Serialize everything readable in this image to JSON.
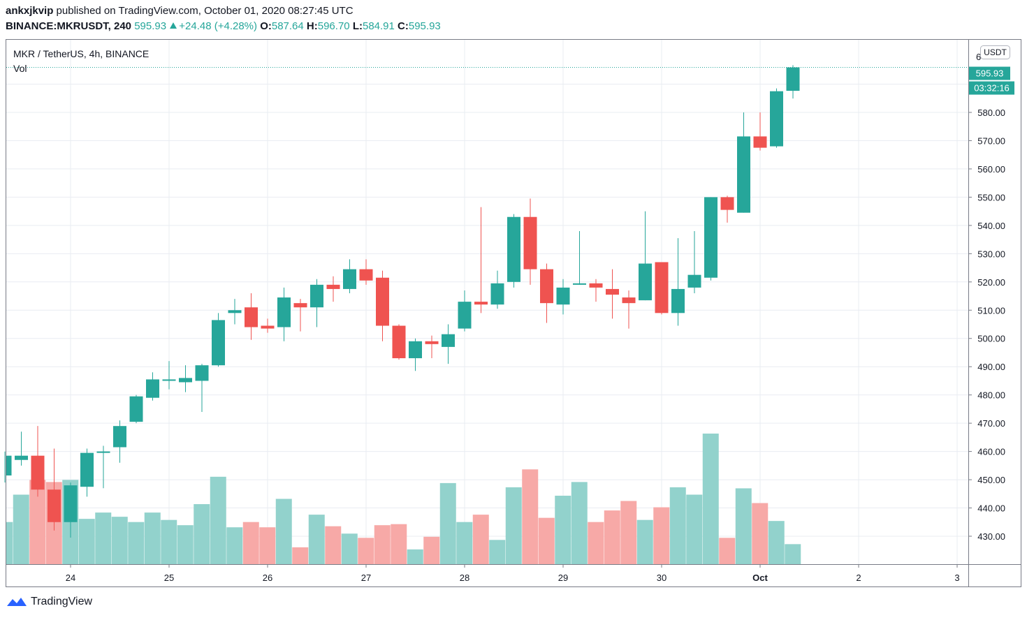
{
  "header": {
    "author": "ankxjkvip",
    "published_text": "published on TradingView.com, October 01, 2020 08:27:45 UTC",
    "symbol": "BINANCE:MKRUSDT, 240",
    "last": "595.93",
    "change": "+24.48 (+4.28%)",
    "o_label": "O:",
    "o_value": "587.64",
    "h_label": "H:",
    "h_value": "596.70",
    "l_label": "L:",
    "l_value": "584.91",
    "c_label": "C:",
    "c_value": "595.93"
  },
  "legend": {
    "series_title": "MKR / TetherUS, 4h, BINANCE",
    "volume_label": "Vol"
  },
  "price_axis": {
    "currency": "USDT",
    "last_price_tag": "595.93",
    "countdown_tag": "03:32:16",
    "top_partial_label": "6"
  },
  "footer": {
    "brand": "TradingView"
  },
  "colors": {
    "up": "#26a69a",
    "down": "#ef5350",
    "up_volume": "#92d2cc",
    "down_volume": "#f7a9a7",
    "grid": "#e9ecf2",
    "axis_text": "#131722"
  },
  "chart_data": {
    "type": "candlestick",
    "ylim": [
      420,
      600
    ],
    "y_ticks": [
      430,
      440,
      450,
      460,
      470,
      480,
      490,
      500,
      510,
      520,
      530,
      540,
      550,
      560,
      570,
      580
    ],
    "x_tick_labels": [
      {
        "label": "24",
        "bar": 4
      },
      {
        "label": "25",
        "bar": 10
      },
      {
        "label": "26",
        "bar": 16
      },
      {
        "label": "27",
        "bar": 22
      },
      {
        "label": "28",
        "bar": 28
      },
      {
        "label": "29",
        "bar": 34
      },
      {
        "label": "30",
        "bar": 40
      },
      {
        "label": "Oct",
        "bar": 46
      },
      {
        "label": "2",
        "bar": 52
      },
      {
        "label": "3",
        "bar": 58
      }
    ],
    "candles": [
      {
        "o": 451.5,
        "h": 460.0,
        "l": 449.0,
        "c": 458.5
      },
      {
        "o": 457.0,
        "h": 467.0,
        "l": 455.0,
        "c": 458.5
      },
      {
        "o": 458.5,
        "h": 469.0,
        "l": 444.0,
        "c": 446.5
      },
      {
        "o": 446.5,
        "h": 461.0,
        "l": 432.0,
        "c": 435.0
      },
      {
        "o": 435.0,
        "h": 449.0,
        "l": 429.5,
        "c": 448.0
      },
      {
        "o": 447.5,
        "h": 461.0,
        "l": 444.0,
        "c": 459.5
      },
      {
        "o": 459.5,
        "h": 462.0,
        "l": 447.0,
        "c": 460.0
      },
      {
        "o": 461.5,
        "h": 471.0,
        "l": 456.0,
        "c": 469.0
      },
      {
        "o": 470.5,
        "h": 480.0,
        "l": 470.0,
        "c": 479.5
      },
      {
        "o": 479.0,
        "h": 488.0,
        "l": 478.0,
        "c": 485.5
      },
      {
        "o": 485.0,
        "h": 492.0,
        "l": 482.0,
        "c": 485.5
      },
      {
        "o": 484.5,
        "h": 490.5,
        "l": 481.0,
        "c": 486.0
      },
      {
        "o": 485.0,
        "h": 491.0,
        "l": 474.0,
        "c": 490.5
      },
      {
        "o": 490.5,
        "h": 509.0,
        "l": 490.0,
        "c": 506.5
      },
      {
        "o": 509.0,
        "h": 514.0,
        "l": 505.0,
        "c": 510.0
      },
      {
        "o": 511.0,
        "h": 516.0,
        "l": 499.5,
        "c": 504.0
      },
      {
        "o": 504.5,
        "h": 507.0,
        "l": 502.0,
        "c": 503.5
      },
      {
        "o": 504.0,
        "h": 518.0,
        "l": 499.0,
        "c": 514.5
      },
      {
        "o": 512.5,
        "h": 514.0,
        "l": 502.5,
        "c": 511.0
      },
      {
        "o": 511.0,
        "h": 521.0,
        "l": 504.0,
        "c": 519.0
      },
      {
        "o": 519.0,
        "h": 522.0,
        "l": 513.0,
        "c": 517.5
      },
      {
        "o": 517.5,
        "h": 528.0,
        "l": 516.0,
        "c": 524.5
      },
      {
        "o": 524.5,
        "h": 528.0,
        "l": 519.0,
        "c": 520.5
      },
      {
        "o": 521.5,
        "h": 524.0,
        "l": 499.0,
        "c": 504.5
      },
      {
        "o": 504.5,
        "h": 505.0,
        "l": 492.5,
        "c": 493.0
      },
      {
        "o": 493.0,
        "h": 500.0,
        "l": 488.5,
        "c": 499.0
      },
      {
        "o": 499.0,
        "h": 501.0,
        "l": 493.0,
        "c": 498.0
      },
      {
        "o": 497.0,
        "h": 505.0,
        "l": 491.0,
        "c": 501.5
      },
      {
        "o": 503.5,
        "h": 517.0,
        "l": 502.5,
        "c": 513.0
      },
      {
        "o": 513.0,
        "h": 546.5,
        "l": 509.0,
        "c": 512.0
      },
      {
        "o": 512.0,
        "h": 524.0,
        "l": 510.5,
        "c": 519.5
      },
      {
        "o": 520.0,
        "h": 544.0,
        "l": 518.0,
        "c": 543.0
      },
      {
        "o": 543.0,
        "h": 549.5,
        "l": 519.0,
        "c": 524.5
      },
      {
        "o": 524.5,
        "h": 526.5,
        "l": 505.5,
        "c": 512.5
      },
      {
        "o": 512.0,
        "h": 521.0,
        "l": 508.5,
        "c": 518.0
      },
      {
        "o": 519.0,
        "h": 538.0,
        "l": 519.0,
        "c": 519.5
      },
      {
        "o": 519.5,
        "h": 521.0,
        "l": 513.0,
        "c": 518.0
      },
      {
        "o": 517.5,
        "h": 524.5,
        "l": 507.0,
        "c": 515.5
      },
      {
        "o": 514.5,
        "h": 517.0,
        "l": 503.5,
        "c": 512.5
      },
      {
        "o": 513.5,
        "h": 545.0,
        "l": 513.5,
        "c": 526.5
      },
      {
        "o": 527.0,
        "h": 527.0,
        "l": 508.5,
        "c": 509.0
      },
      {
        "o": 509.0,
        "h": 535.5,
        "l": 504.5,
        "c": 517.5
      },
      {
        "o": 518.0,
        "h": 538.0,
        "l": 516.0,
        "c": 522.5
      },
      {
        "o": 521.5,
        "h": 550.0,
        "l": 520.5,
        "c": 550.0
      },
      {
        "o": 550.0,
        "h": 550.5,
        "l": 541.0,
        "c": 545.5
      },
      {
        "o": 544.5,
        "h": 580.0,
        "l": 544.5,
        "c": 571.5
      },
      {
        "o": 571.5,
        "h": 580.0,
        "l": 566.5,
        "c": 567.5
      },
      {
        "o": 568.0,
        "h": 588.5,
        "l": 567.5,
        "c": 587.5
      },
      {
        "o": 587.64,
        "h": 596.7,
        "l": 584.91,
        "c": 595.93
      }
    ],
    "volume": [
      40,
      66,
      80,
      78,
      80,
      43,
      49,
      45,
      40,
      49,
      42,
      37,
      57,
      83,
      35,
      40,
      35,
      62,
      16,
      47,
      36,
      29,
      25,
      37,
      38,
      14,
      26,
      77,
      40,
      47,
      23,
      73,
      90,
      44,
      65,
      78,
      40,
      51,
      60,
      42,
      54,
      73,
      66,
      124,
      25,
      72,
      58,
      41,
      19
    ],
    "last_price_line": 595.93
  }
}
